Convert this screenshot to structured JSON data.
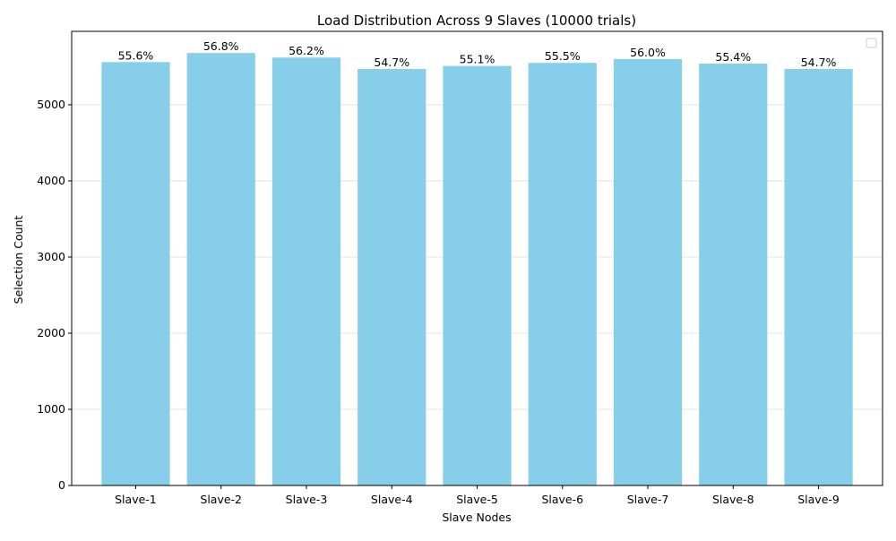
{
  "chart_data": {
    "type": "bar",
    "title": "Load Distribution Across 9 Slaves (10000 trials)",
    "xlabel": "Slave Nodes",
    "ylabel": "Selection Count",
    "categories": [
      "Slave-1",
      "Slave-2",
      "Slave-3",
      "Slave-4",
      "Slave-5",
      "Slave-6",
      "Slave-7",
      "Slave-8",
      "Slave-9"
    ],
    "values": [
      5560,
      5680,
      5620,
      5470,
      5510,
      5550,
      5600,
      5540,
      5470
    ],
    "data_labels": [
      "55.6%",
      "56.8%",
      "56.2%",
      "54.7%",
      "55.1%",
      "55.5%",
      "56.0%",
      "55.4%",
      "54.7%"
    ],
    "yticks": [
      0,
      1000,
      2000,
      3000,
      4000,
      5000
    ],
    "ylim": [
      0,
      5964
    ],
    "grid": "y-axis",
    "legend": "top-right (empty)",
    "colors": {
      "bar": "#87ceeb",
      "grid": "#dddddd",
      "axis": "#000000"
    }
  }
}
